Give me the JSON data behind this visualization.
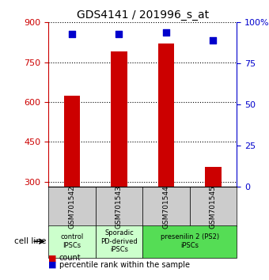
{
  "title": "GDS4141 / 201996_s_at",
  "samples": [
    "GSM701542",
    "GSM701543",
    "GSM701544",
    "GSM701545"
  ],
  "counts": [
    625,
    790,
    820,
    355
  ],
  "percentile_ranks": [
    93,
    93,
    94,
    89
  ],
  "ylim_left": [
    280,
    900
  ],
  "ylim_right": [
    0,
    100
  ],
  "yticks_left": [
    300,
    450,
    600,
    750,
    900
  ],
  "yticks_right": [
    0,
    25,
    50,
    75,
    100
  ],
  "ytick_right_labels": [
    "0",
    "25",
    "50",
    "75",
    "100%"
  ],
  "bar_color": "#cc0000",
  "dot_color": "#0000cc",
  "grid_color": "#000000",
  "bar_bottom": 280,
  "groups": [
    {
      "label": "control\nIPSCs",
      "start": 0,
      "end": 1,
      "color": "#ccffcc"
    },
    {
      "label": "Sporadic\nPD-derived\niPSCs",
      "start": 1,
      "end": 2,
      "color": "#ccffcc"
    },
    {
      "label": "presenilin 2 (PS2)\niPSCs",
      "start": 2,
      "end": 4,
      "color": "#66ff66"
    }
  ],
  "cell_line_label": "cell line",
  "legend_count_label": "count",
  "legend_pct_label": "percentile rank within the sample",
  "xlabel_color": "#000000",
  "left_axis_color": "#cc0000",
  "right_axis_color": "#0000cc"
}
